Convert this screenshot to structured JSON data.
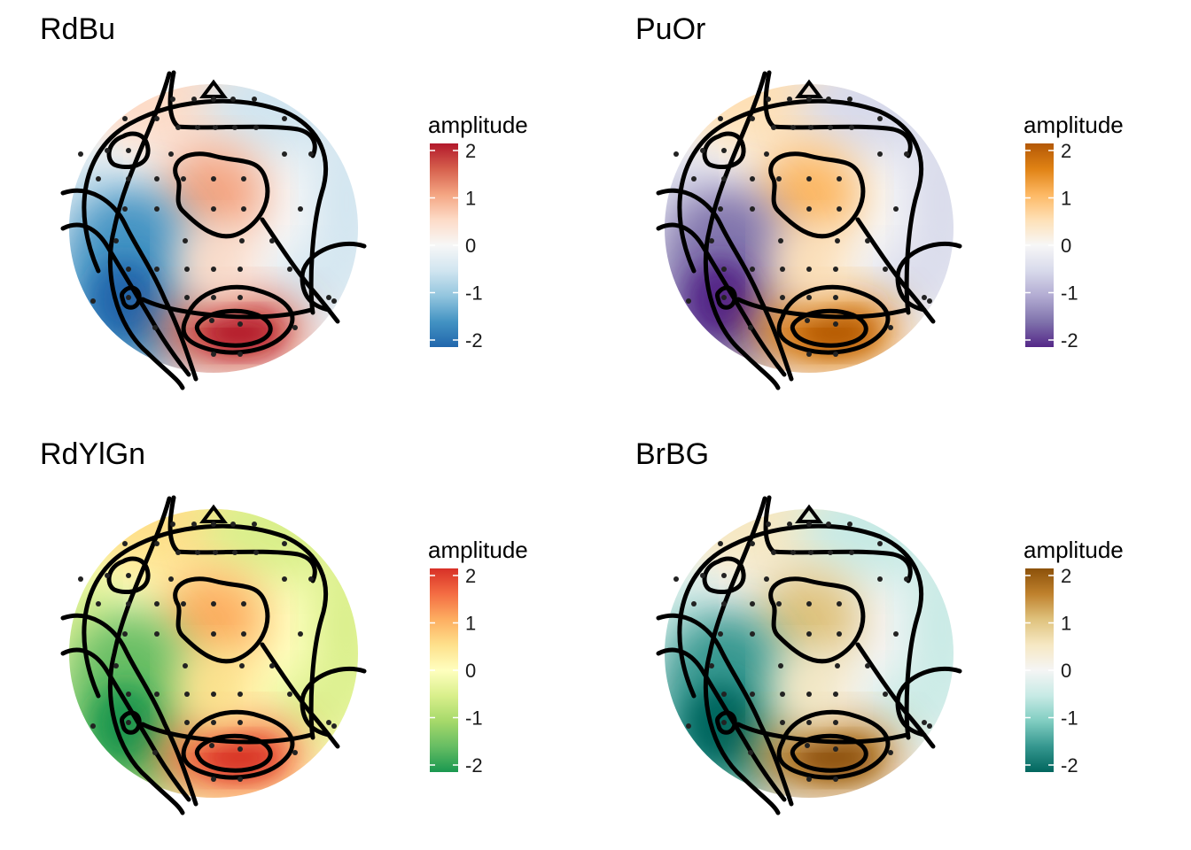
{
  "chart_data": [
    {
      "type": "heatmap",
      "title": "RdBu",
      "legend_title": "amplitude",
      "ticks": [
        2,
        1,
        0,
        -1,
        -2
      ],
      "limits": [
        -2,
        2
      ],
      "palette": [
        "#b2182b",
        "#d6604d",
        "#f4a582",
        "#fddbc7",
        "#f7f7f7",
        "#d1e5f0",
        "#92c5de",
        "#4393c3",
        "#2166ac"
      ]
    },
    {
      "type": "heatmap",
      "title": "PuOr",
      "legend_title": "amplitude",
      "ticks": [
        2,
        1,
        0,
        -1,
        -2
      ],
      "limits": [
        -2,
        2
      ],
      "palette": [
        "#b35806",
        "#e08214",
        "#fdb863",
        "#fee0b6",
        "#f7f7f7",
        "#d8daeb",
        "#b2abd2",
        "#8073ac",
        "#542788"
      ]
    },
    {
      "type": "heatmap",
      "title": "RdYlGn",
      "legend_title": "amplitude",
      "ticks": [
        2,
        1,
        0,
        -1,
        -2
      ],
      "limits": [
        -2,
        2
      ],
      "palette": [
        "#d73027",
        "#f46d43",
        "#fdae61",
        "#fee08b",
        "#ffffbf",
        "#d9ef8b",
        "#a6d96a",
        "#66bd63",
        "#1a9850"
      ]
    },
    {
      "type": "heatmap",
      "title": "BrBG",
      "legend_title": "amplitude",
      "ticks": [
        2,
        1,
        0,
        -1,
        -2
      ],
      "limits": [
        -2,
        2
      ],
      "palette": [
        "#8c510a",
        "#bf812d",
        "#dfc27d",
        "#f6e8c3",
        "#f5f5f5",
        "#c7eae5",
        "#80cdc1",
        "#35978f",
        "#01665e"
      ]
    }
  ]
}
